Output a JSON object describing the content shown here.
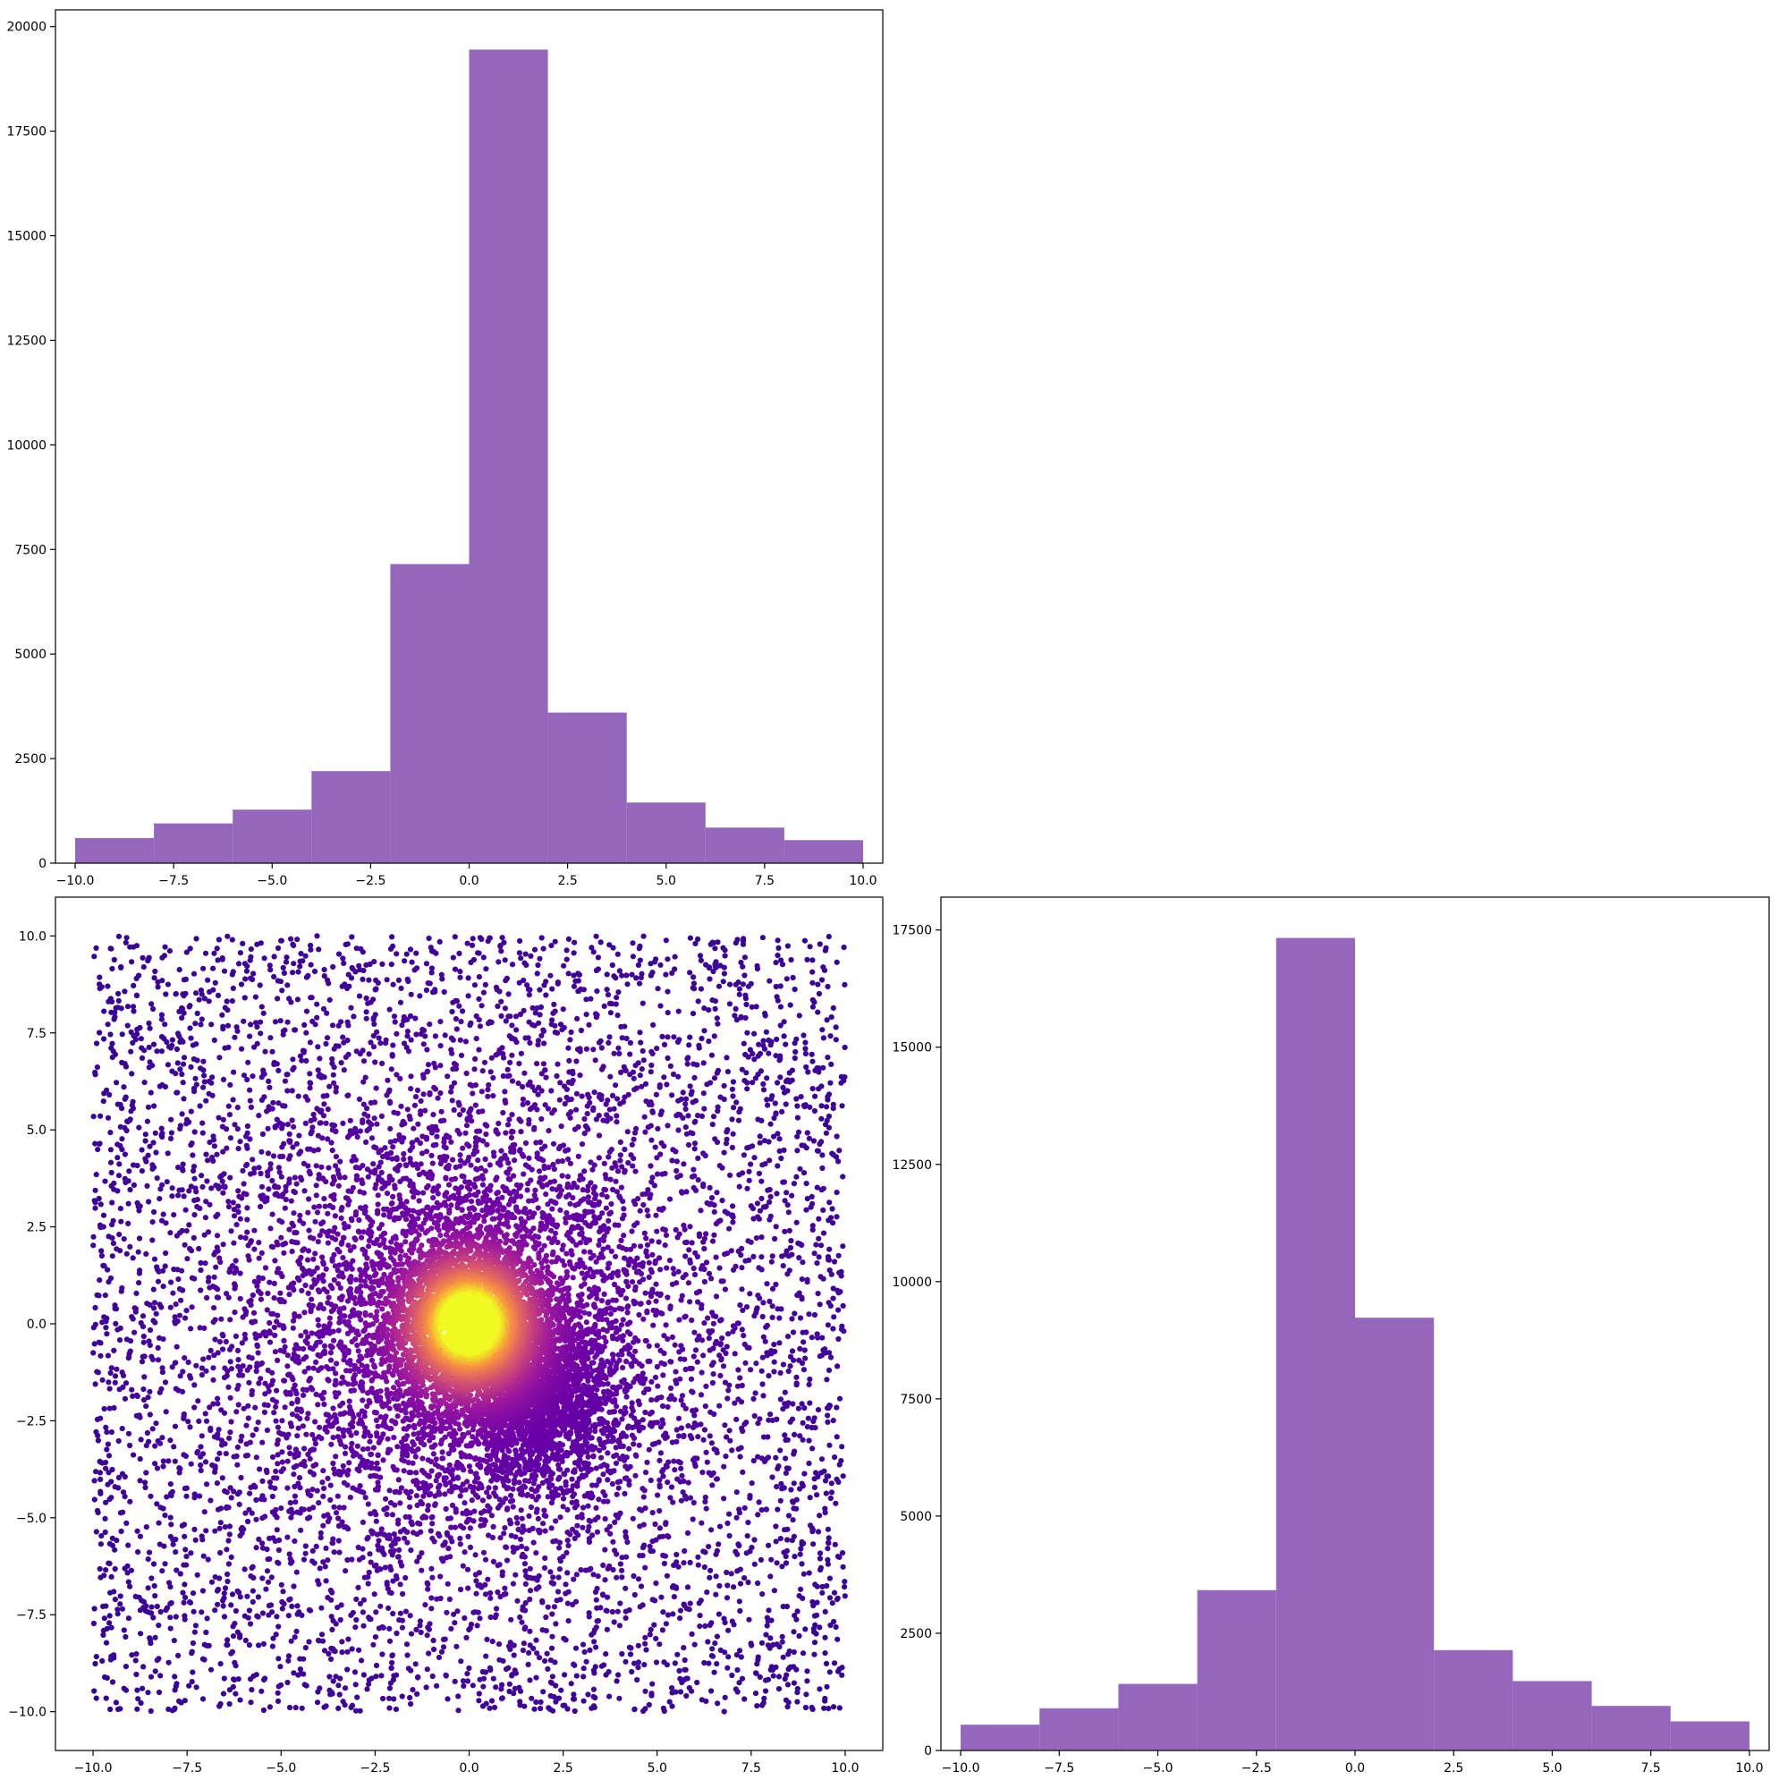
{
  "chart_data": [
    {
      "type": "bar",
      "subplot": "top-left",
      "bin_edges": [
        -10,
        -8,
        -6,
        -4,
        -2,
        0,
        2,
        4,
        6,
        8,
        10
      ],
      "values": [
        600,
        950,
        1280,
        2200,
        7150,
        19450,
        3600,
        1450,
        850,
        550
      ],
      "color": "#9467bd",
      "xlim": [
        -10.5,
        10.5
      ],
      "ylim": [
        0,
        20400
      ],
      "xticks": [
        -10,
        -7.5,
        -5,
        -2.5,
        0,
        2.5,
        5,
        7.5,
        10
      ],
      "xtick_labels": [
        "−10.0",
        "−7.5",
        "−5.0",
        "−2.5",
        "0.0",
        "2.5",
        "5.0",
        "7.5",
        "10.0"
      ],
      "yticks": [
        0,
        2500,
        5000,
        7500,
        10000,
        12500,
        15000,
        17500,
        20000
      ],
      "ytick_labels": [
        "0",
        "2500",
        "5000",
        "7500",
        "10000",
        "12500",
        "15000",
        "17500",
        "20000"
      ]
    },
    {
      "type": "scatter",
      "subplot": "bottom-left",
      "description_of_distribution": "uniform background on [-10,10]^2 plus dense clusters near (0,0) and (2,-2)",
      "x_range": [
        -10,
        10
      ],
      "y_range": [
        -10,
        10
      ],
      "clusters": [
        {
          "center": [
            0,
            0
          ],
          "spread": 1.0
        },
        {
          "center": [
            1.8,
            -2.0
          ],
          "spread": 1.0
        }
      ],
      "colormap": "plasma",
      "colormap_stops": [
        "#2a0593",
        "#6a00a8",
        "#9c179e",
        "#c33d80",
        "#e16462",
        "#f89540",
        "#f0f921"
      ],
      "xlim": [
        -11,
        11
      ],
      "ylim": [
        -11,
        11
      ],
      "xticks": [
        -10,
        -7.5,
        -5,
        -2.5,
        0,
        2.5,
        5,
        7.5,
        10
      ],
      "xtick_labels": [
        "−10.0",
        "−7.5",
        "−5.0",
        "−2.5",
        "0.0",
        "2.5",
        "5.0",
        "7.5",
        "10.0"
      ],
      "yticks": [
        -10,
        -7.5,
        -5,
        -2.5,
        0,
        2.5,
        5,
        7.5,
        10
      ],
      "ytick_labels": [
        "−10.0",
        "−7.5",
        "−5.0",
        "−2.5",
        "0.0",
        "2.5",
        "5.0",
        "7.5",
        "10.0"
      ]
    },
    {
      "type": "bar",
      "subplot": "bottom-right",
      "bin_edges": [
        -10,
        -8,
        -6,
        -4,
        -2,
        0,
        2,
        4,
        6,
        8,
        10
      ],
      "values": [
        550,
        900,
        1420,
        3420,
        17330,
        9230,
        2140,
        1480,
        950,
        620
      ],
      "color": "#9467bd",
      "xlim": [
        -10.5,
        10.5
      ],
      "ylim": [
        0,
        18200
      ],
      "xticks": [
        -10,
        -7.5,
        -5,
        -2.5,
        0,
        2.5,
        5,
        7.5,
        10
      ],
      "xtick_labels": [
        "−10.0",
        "−7.5",
        "−5.0",
        "−2.5",
        "0.0",
        "2.5",
        "5.0",
        "7.5",
        "10.0"
      ],
      "yticks": [
        0,
        2500,
        5000,
        7500,
        10000,
        12500,
        15000,
        17500
      ],
      "ytick_labels": [
        "0",
        "2500",
        "5000",
        "7500",
        "10000",
        "12500",
        "15000",
        "17500"
      ]
    }
  ]
}
